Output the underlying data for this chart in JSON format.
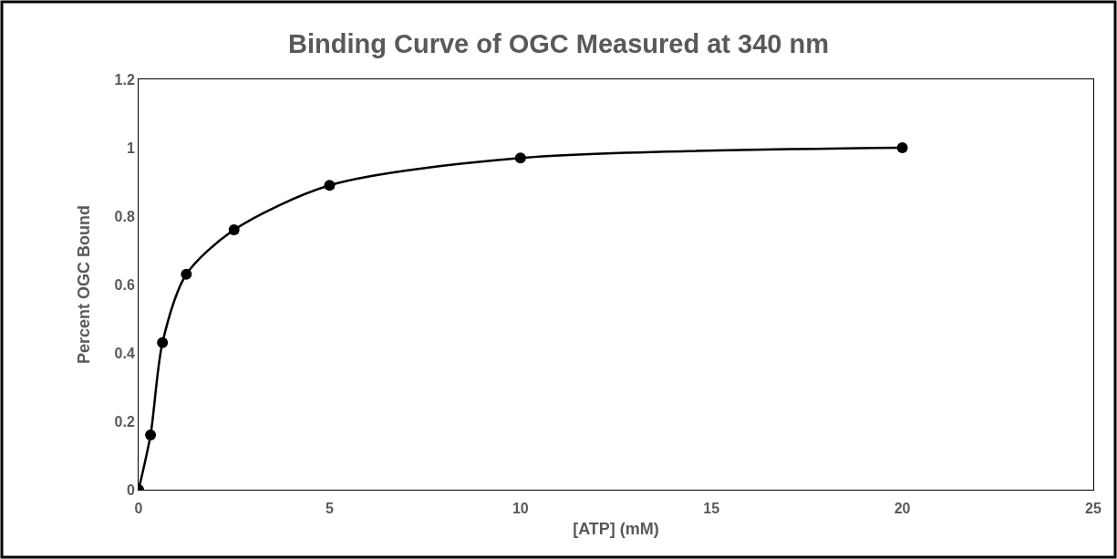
{
  "chart_data": {
    "type": "line",
    "title": "Binding Curve of OGC Measured at 340 nm",
    "xlabel": "[ATP] (mM)",
    "ylabel": "Percent OGC Bound",
    "x": [
      0,
      0.3125,
      0.625,
      1.25,
      2.5,
      5,
      10,
      20
    ],
    "series": [
      {
        "color": "#000000",
        "values": [
          0,
          0.16,
          0.43,
          0.63,
          0.76,
          0.89,
          0.97,
          1.0
        ]
      }
    ],
    "xlim": [
      0,
      25
    ],
    "xticks": [
      0,
      5,
      10,
      15,
      20,
      25
    ],
    "ylim": [
      0,
      1.2
    ],
    "yticks": [
      0,
      0.2,
      0.4,
      0.6,
      0.8,
      1,
      1.2
    ],
    "marker": "circle",
    "line_style": "solid",
    "grid": false
  }
}
